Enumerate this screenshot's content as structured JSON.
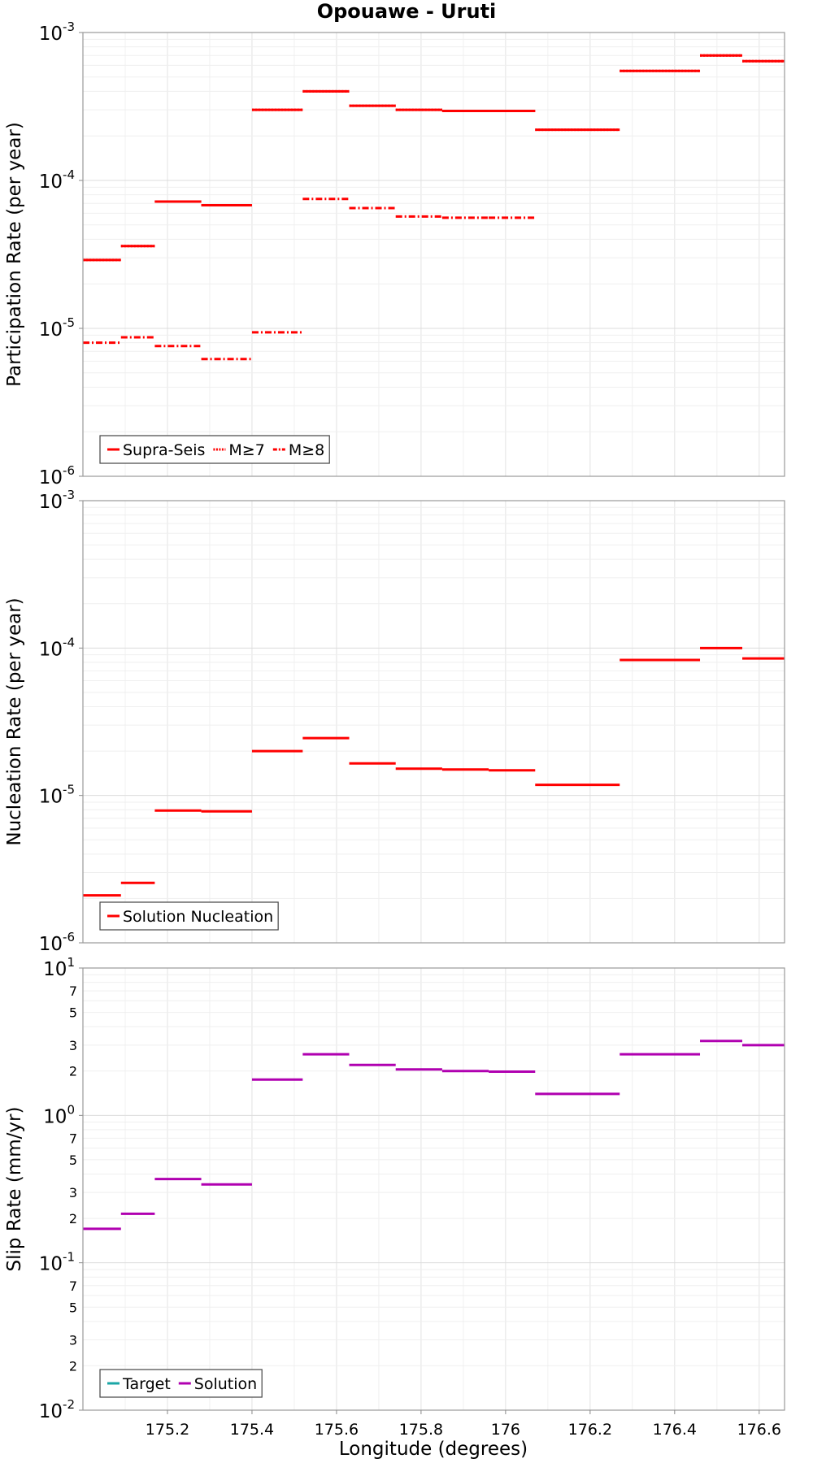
{
  "chart_data": {
    "type": "step-line",
    "title": "Opouawe - Uruti",
    "xlabel": "Longitude (degrees)",
    "xlim": [
      175.0,
      176.66
    ],
    "xticks": [
      "175.2",
      "175.4",
      "175.6",
      "175.8",
      "176",
      "176.2",
      "176.4",
      "176.6"
    ],
    "colors": {
      "red": "#ff0000",
      "magenta": "#b000b0",
      "teal": "#1aa6a6"
    },
    "panels": [
      {
        "id": "participation",
        "ylabel": "Participation Rate (per year)",
        "yscale": "log",
        "ylim": [
          1e-06,
          0.001
        ],
        "ytick_base": "10",
        "ytick_exponents": [
          "-6",
          "-5",
          "-4",
          "-3"
        ],
        "legend": [
          "Supra-Seis",
          "M≥7",
          "M≥8"
        ],
        "legend_position": "bottom-left",
        "series": [
          {
            "name": "Supra-Seis",
            "style": "solid",
            "segments": [
              [
                175.0,
                175.09,
                2.9e-05
              ],
              [
                175.09,
                175.17,
                3.6e-05
              ],
              [
                175.17,
                175.28,
                7.2e-05
              ],
              [
                175.28,
                175.4,
                6.8e-05
              ],
              [
                175.4,
                175.52,
                0.0003
              ],
              [
                175.52,
                175.63,
                0.0004
              ],
              [
                175.63,
                175.74,
                0.00032
              ],
              [
                175.74,
                175.85,
                0.0003
              ],
              [
                175.85,
                175.96,
                0.000295
              ],
              [
                175.96,
                176.07,
                0.000295
              ],
              [
                176.07,
                176.27,
                0.00022
              ],
              [
                176.27,
                176.46,
                0.00055
              ],
              [
                176.46,
                176.56,
                0.0007
              ],
              [
                176.56,
                176.66,
                0.00064
              ]
            ]
          },
          {
            "name": "M≥7",
            "style": "dotted",
            "segments": [
              [
                175.0,
                175.09,
                2.9e-05
              ],
              [
                175.09,
                175.17,
                3.6e-05
              ],
              [
                175.17,
                175.28,
                7.2e-05
              ],
              [
                175.28,
                175.4,
                6.8e-05
              ],
              [
                175.4,
                175.52,
                0.0003
              ],
              [
                175.52,
                175.63,
                0.0004
              ],
              [
                175.63,
                175.74,
                0.00032
              ],
              [
                175.74,
                175.85,
                0.0003
              ],
              [
                175.85,
                175.96,
                0.000295
              ],
              [
                175.96,
                176.07,
                0.000295
              ],
              [
                176.07,
                176.27,
                0.00022
              ],
              [
                176.27,
                176.46,
                0.00055
              ],
              [
                176.46,
                176.56,
                0.0007
              ],
              [
                176.56,
                176.66,
                0.00064
              ]
            ]
          },
          {
            "name": "M≥8",
            "style": "dashdot",
            "segments": [
              [
                175.0,
                175.09,
                8e-06
              ],
              [
                175.09,
                175.17,
                8.7e-06
              ],
              [
                175.17,
                175.28,
                7.6e-06
              ],
              [
                175.28,
                175.4,
                6.2e-06
              ],
              [
                175.4,
                175.52,
                9.4e-06
              ],
              [
                175.52,
                175.63,
                7.5e-05
              ],
              [
                175.63,
                175.74,
                6.5e-05
              ],
              [
                175.74,
                175.85,
                5.7e-05
              ],
              [
                175.85,
                175.96,
                5.6e-05
              ],
              [
                175.96,
                176.07,
                5.6e-05
              ]
            ]
          }
        ]
      },
      {
        "id": "nucleation",
        "ylabel": "Nucleation Rate (per year)",
        "yscale": "log",
        "ylim": [
          1e-06,
          0.001
        ],
        "ytick_base": "10",
        "ytick_exponents": [
          "-6",
          "-5",
          "-4",
          "-3"
        ],
        "legend": [
          "Solution Nucleation"
        ],
        "legend_position": "bottom-left",
        "series": [
          {
            "name": "Solution Nucleation",
            "style": "solid",
            "segments": [
              [
                175.0,
                175.09,
                2.1e-06
              ],
              [
                175.09,
                175.17,
                2.55e-06
              ],
              [
                175.17,
                175.28,
                7.9e-06
              ],
              [
                175.28,
                175.4,
                7.8e-06
              ],
              [
                175.4,
                175.52,
                2e-05
              ],
              [
                175.52,
                175.63,
                2.45e-05
              ],
              [
                175.63,
                175.74,
                1.65e-05
              ],
              [
                175.74,
                175.85,
                1.52e-05
              ],
              [
                175.85,
                175.96,
                1.5e-05
              ],
              [
                175.96,
                176.07,
                1.48e-05
              ],
              [
                176.07,
                176.27,
                1.18e-05
              ],
              [
                176.27,
                176.46,
                8.3e-05
              ],
              [
                176.46,
                176.56,
                0.0001
              ],
              [
                176.56,
                176.66,
                8.5e-05
              ]
            ]
          }
        ]
      },
      {
        "id": "slip",
        "ylabel": "Slip Rate (mm/yr)",
        "yscale": "log",
        "ylim": [
          0.01,
          10
        ],
        "ytick_base": "10",
        "ytick_exponents": [
          "-2",
          "-1",
          "0",
          "1"
        ],
        "minor_labels": [
          "2",
          "3",
          "5",
          "7"
        ],
        "legend": [
          "Target",
          "Solution"
        ],
        "legend_position": "bottom-left",
        "series": [
          {
            "name": "Target",
            "style": "solid",
            "segments": []
          },
          {
            "name": "Solution",
            "style": "solid",
            "segments": [
              [
                175.0,
                175.09,
                0.17
              ],
              [
                175.09,
                175.17,
                0.215
              ],
              [
                175.17,
                175.28,
                0.37
              ],
              [
                175.28,
                175.4,
                0.34
              ],
              [
                175.4,
                175.52,
                1.75
              ],
              [
                175.52,
                175.63,
                2.6
              ],
              [
                175.63,
                175.74,
                2.2
              ],
              [
                175.74,
                175.85,
                2.05
              ],
              [
                175.85,
                175.96,
                2.0
              ],
              [
                175.96,
                176.07,
                1.98
              ],
              [
                176.07,
                176.27,
                1.4
              ],
              [
                176.27,
                176.46,
                2.6
              ],
              [
                176.46,
                176.56,
                3.2
              ],
              [
                176.56,
                176.66,
                3.0
              ]
            ]
          }
        ]
      }
    ]
  }
}
